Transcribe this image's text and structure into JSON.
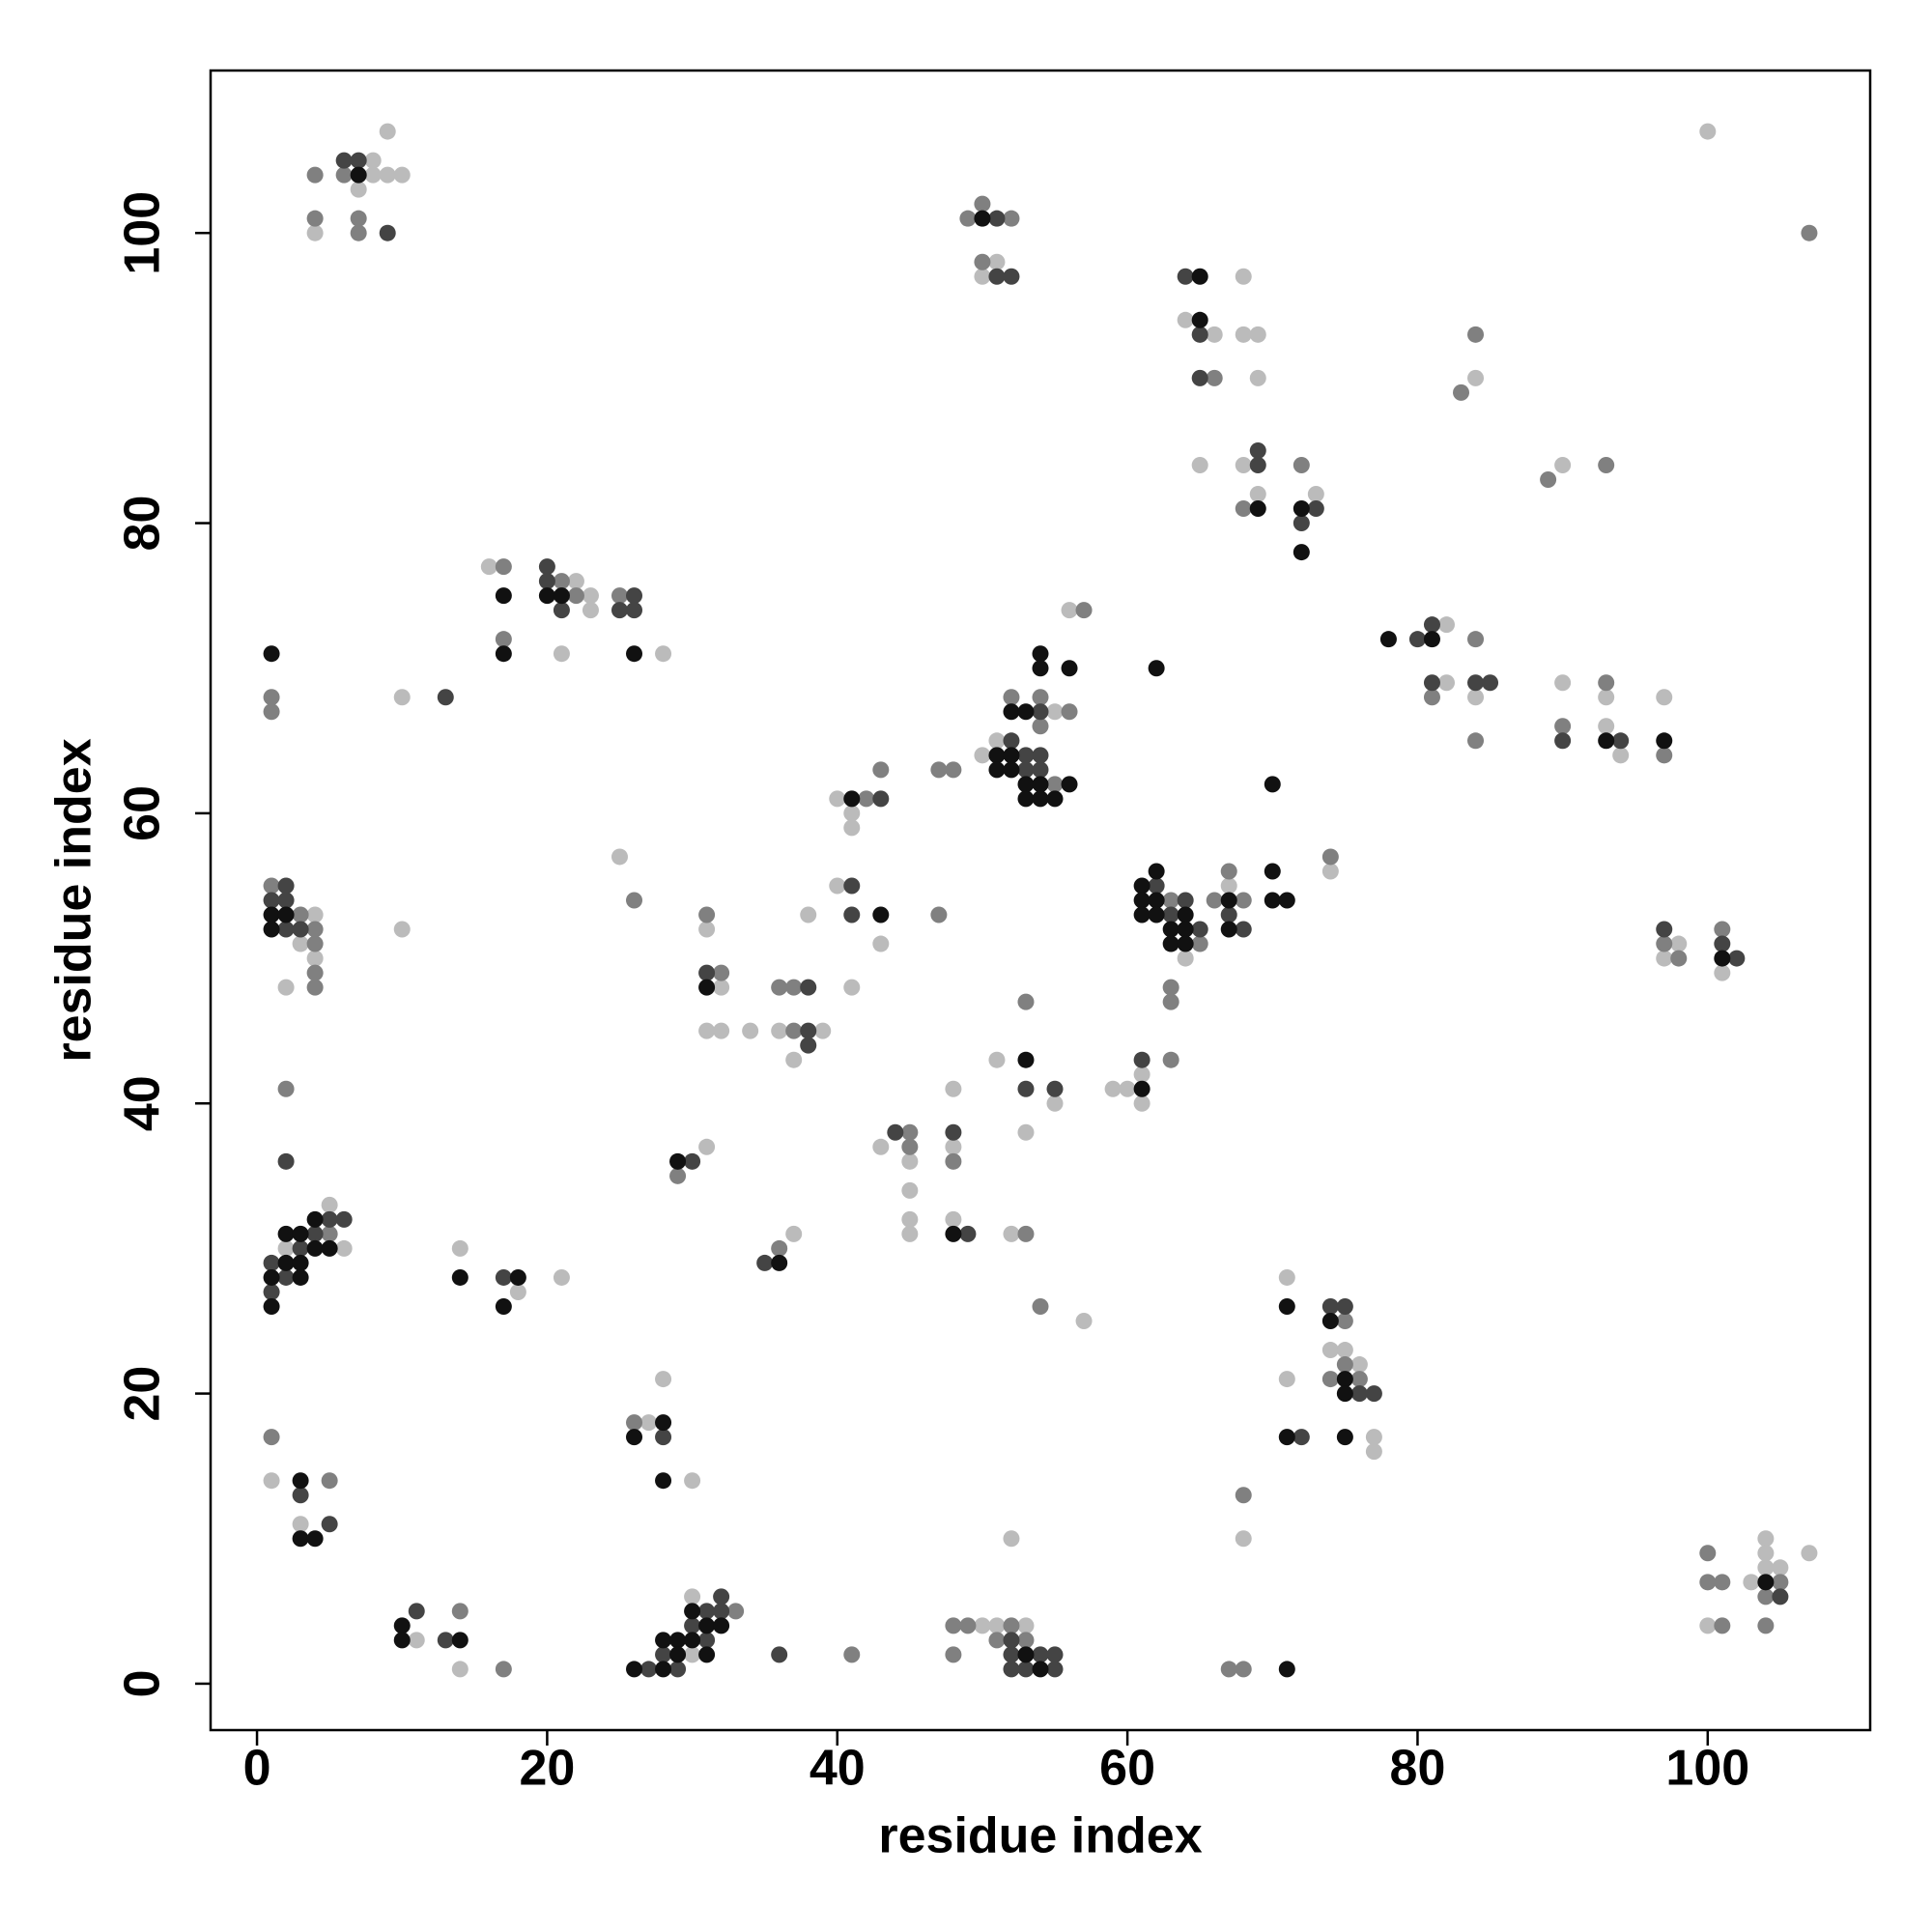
{
  "chart_data": {
    "type": "scatter",
    "xlabel": "residue index",
    "ylabel": "residue index",
    "xlim": [
      -3.2,
      111.2
    ],
    "ylim": [
      -3.2,
      111.2
    ],
    "xticks": [
      0,
      20,
      40,
      60,
      80,
      100
    ],
    "yticks": [
      0,
      20,
      40,
      60,
      80,
      100
    ],
    "series": [
      {
        "color": "#bbbbbb",
        "x": [
          8,
          8,
          9,
          10,
          9,
          7,
          4,
          51,
          50,
          68,
          64,
          66,
          68,
          69,
          69,
          65,
          68,
          69,
          73,
          84,
          90,
          100,
          16,
          22,
          23,
          23,
          21,
          28,
          10,
          4,
          3,
          4,
          2,
          10,
          5,
          2,
          6,
          14,
          18,
          21,
          1,
          3,
          11,
          14,
          30,
          30,
          27,
          28,
          30,
          31,
          37,
          31,
          32,
          31,
          32,
          34,
          36,
          39,
          37,
          38,
          25,
          40,
          41,
          41,
          40,
          43,
          41,
          51,
          50,
          55,
          56,
          64,
          67,
          74,
          61,
          59,
          60,
          61,
          51,
          55,
          53,
          43,
          45,
          45,
          45,
          45,
          48,
          48,
          48,
          52,
          57,
          50,
          51,
          53,
          52,
          68,
          71,
          74,
          75,
          76,
          71,
          77,
          77,
          82,
          82,
          84,
          90,
          93,
          94,
          93,
          97,
          98,
          97,
          101,
          104,
          104,
          107,
          103,
          104,
          105,
          100
        ],
        "values": [
          105,
          104,
          104,
          104,
          107,
          103,
          100,
          98,
          97,
          97,
          94,
          93,
          93,
          93,
          90,
          84,
          84,
          82,
          82,
          90,
          84,
          107,
          77,
          76,
          75,
          74,
          71,
          71,
          68,
          53,
          51,
          50,
          48,
          52,
          33,
          30,
          30,
          30,
          27,
          28,
          14,
          11,
          3,
          1,
          6,
          2,
          18,
          21,
          14,
          37,
          31,
          52,
          48,
          45,
          45,
          45,
          45,
          45,
          43,
          53,
          57,
          61,
          60,
          59,
          55,
          51,
          48,
          65,
          64,
          67,
          74,
          50,
          55,
          56,
          42,
          41,
          41,
          40,
          43,
          40,
          38,
          37,
          36,
          34,
          32,
          31,
          41,
          37,
          32,
          31,
          25,
          4,
          4,
          4,
          10,
          10,
          28,
          23,
          23,
          22,
          21,
          17,
          16,
          73,
          69,
          68,
          69,
          66,
          64,
          68,
          68,
          51,
          50,
          49,
          10,
          9,
          9,
          7,
          8,
          8,
          4
        ]
      },
      {
        "color": "#808080",
        "x": [
          4,
          6,
          4,
          7,
          7,
          50,
          49,
          52,
          50,
          66,
          72,
          68,
          84,
          83,
          89,
          93,
          107,
          17,
          21,
          22,
          25,
          17,
          1,
          1,
          1,
          3,
          4,
          4,
          4,
          4,
          2,
          5,
          1,
          5,
          14,
          17,
          33,
          26,
          41,
          29,
          36,
          31,
          32,
          36,
          37,
          37,
          26,
          42,
          43,
          47,
          47,
          48,
          52,
          54,
          56,
          54,
          55,
          57,
          63,
          65,
          66,
          67,
          68,
          74,
          63,
          63,
          63,
          53,
          45,
          45,
          48,
          53,
          54,
          48,
          49,
          52,
          51,
          53,
          48,
          67,
          68,
          68,
          75,
          75,
          74,
          76,
          84,
          81,
          84,
          93,
          90,
          97,
          101,
          97,
          98,
          100,
          100,
          101,
          105,
          104,
          101,
          104
        ],
        "values": [
          104,
          104,
          101,
          101,
          100,
          102,
          101,
          101,
          98,
          90,
          84,
          81,
          93,
          89,
          83,
          84,
          100,
          77,
          76,
          75,
          75,
          72,
          68,
          67,
          55,
          53,
          52,
          51,
          49,
          48,
          41,
          31,
          17,
          14,
          5,
          1,
          5,
          18,
          2,
          35,
          30,
          53,
          49,
          48,
          48,
          45,
          54,
          61,
          63,
          53,
          63,
          63,
          68,
          68,
          67,
          66,
          62,
          74,
          54,
          51,
          54,
          56,
          54,
          57,
          48,
          47,
          43,
          47,
          38,
          37,
          36,
          31,
          26,
          4,
          4,
          4,
          3,
          3,
          2,
          1,
          1,
          13,
          25,
          22,
          21,
          21,
          72,
          68,
          65,
          69,
          66,
          64,
          52,
          51,
          50,
          9,
          7,
          7,
          7,
          6,
          4,
          4
        ]
      },
      {
        "color": "#444444",
        "x": [
          6,
          7,
          9,
          51,
          51,
          52,
          64,
          65,
          65,
          69,
          69,
          73,
          72,
          20,
          20,
          26,
          21,
          25,
          26,
          13,
          2,
          1,
          2,
          2,
          3,
          2,
          5,
          6,
          4,
          3,
          1,
          2,
          1,
          17,
          3,
          5,
          11,
          13,
          32,
          31,
          32,
          30,
          31,
          28,
          27,
          29,
          36,
          28,
          30,
          35,
          31,
          38,
          38,
          38,
          43,
          41,
          41,
          54,
          52,
          53,
          54,
          53,
          54,
          62,
          64,
          63,
          65,
          67,
          68,
          61,
          53,
          55,
          44,
          48,
          49,
          52,
          52,
          54,
          55,
          52,
          53,
          55,
          74,
          75,
          76,
          77,
          72,
          80,
          81,
          81,
          84,
          85,
          90,
          94,
          97,
          101,
          102,
          105
        ],
        "values": [
          105,
          105,
          100,
          101,
          97,
          97,
          97,
          93,
          90,
          85,
          84,
          81,
          80,
          77,
          76,
          75,
          74,
          74,
          74,
          68,
          55,
          54,
          54,
          52,
          52,
          36,
          32,
          32,
          31,
          30,
          29,
          28,
          27,
          28,
          13,
          11,
          5,
          3,
          6,
          5,
          5,
          4,
          3,
          2,
          1,
          1,
          2,
          17,
          36,
          29,
          49,
          48,
          45,
          44,
          61,
          55,
          53,
          67,
          65,
          64,
          64,
          63,
          63,
          55,
          54,
          53,
          52,
          53,
          52,
          43,
          41,
          41,
          38,
          38,
          31,
          3,
          2,
          2,
          2,
          1,
          1,
          1,
          26,
          26,
          20,
          20,
          17,
          72,
          73,
          69,
          69,
          69,
          65,
          65,
          52,
          51,
          50,
          6
        ]
      },
      {
        "color": "#111111",
        "x": [
          7,
          50,
          65,
          65,
          69,
          72,
          72,
          17,
          20,
          21,
          17,
          26,
          1,
          1,
          2,
          1,
          4,
          2,
          3,
          4,
          5,
          2,
          3,
          1,
          3,
          1,
          14,
          18,
          17,
          3,
          3,
          4,
          10,
          10,
          14,
          30,
          31,
          32,
          28,
          29,
          30,
          29,
          31,
          26,
          28,
          28,
          26,
          28,
          29,
          36,
          31,
          41,
          43,
          54,
          54,
          56,
          52,
          53,
          51,
          52,
          51,
          52,
          53,
          54,
          56,
          53,
          54,
          55,
          62,
          70,
          62,
          61,
          61,
          62,
          61,
          62,
          64,
          63,
          64,
          63,
          64,
          67,
          67,
          70,
          70,
          71,
          61,
          53,
          48,
          53,
          54,
          71,
          71,
          74,
          75,
          75,
          71,
          75,
          78,
          81,
          93,
          97,
          101,
          104
        ],
        "values": [
          104,
          101,
          97,
          94,
          81,
          81,
          78,
          75,
          75,
          75,
          71,
          71,
          71,
          53,
          53,
          52,
          32,
          31,
          31,
          30,
          30,
          29,
          29,
          28,
          28,
          26,
          28,
          28,
          26,
          14,
          10,
          10,
          4,
          3,
          3,
          5,
          4,
          4,
          3,
          3,
          3,
          2,
          2,
          1,
          1,
          18,
          17,
          14,
          36,
          29,
          48,
          61,
          53,
          71,
          70,
          70,
          67,
          67,
          64,
          64,
          63,
          63,
          62,
          62,
          62,
          61,
          61,
          61,
          70,
          62,
          56,
          55,
          54,
          54,
          53,
          53,
          53,
          52,
          52,
          51,
          51,
          54,
          52,
          56,
          54,
          54,
          41,
          43,
          31,
          2,
          1,
          1,
          26,
          25,
          21,
          20,
          17,
          17,
          72,
          72,
          65,
          65,
          50,
          7
        ]
      }
    ]
  }
}
